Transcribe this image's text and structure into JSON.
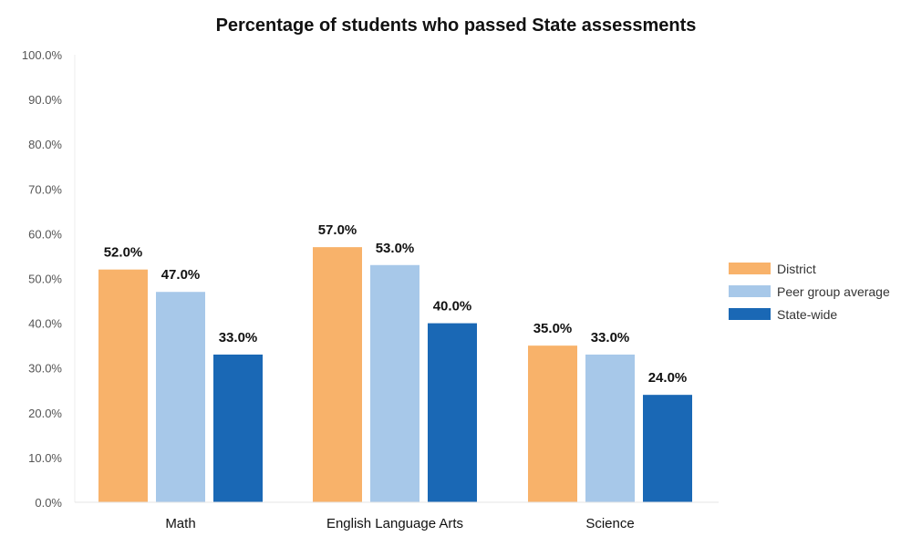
{
  "chart_data": {
    "type": "bar",
    "title": "Percentage of students who passed State assessments",
    "categories": [
      "Math",
      "English Language Arts",
      "Science"
    ],
    "series": [
      {
        "name": "District",
        "color": "#F8B26A",
        "values": [
          52.0,
          57.0,
          35.0
        ],
        "labels": [
          "52.0%",
          "57.0%",
          "35.0%"
        ]
      },
      {
        "name": "Peer group average",
        "color": "#A7C8E9",
        "values": [
          47.0,
          53.0,
          33.0
        ],
        "labels": [
          "47.0%",
          "53.0%",
          "33.0%"
        ]
      },
      {
        "name": "State-wide",
        "color": "#1A68B5",
        "values": [
          33.0,
          40.0,
          24.0
        ],
        "labels": [
          "33.0%",
          "40.0%",
          "24.0%"
        ]
      }
    ],
    "ylim": [
      0,
      100
    ],
    "yticks": [
      "0.0%",
      "10.0%",
      "20.0%",
      "30.0%",
      "40.0%",
      "50.0%",
      "60.0%",
      "70.0%",
      "80.0%",
      "90.0%",
      "100.0%"
    ],
    "xlabel": "",
    "ylabel": "",
    "grid": false,
    "legend_position": "right"
  }
}
